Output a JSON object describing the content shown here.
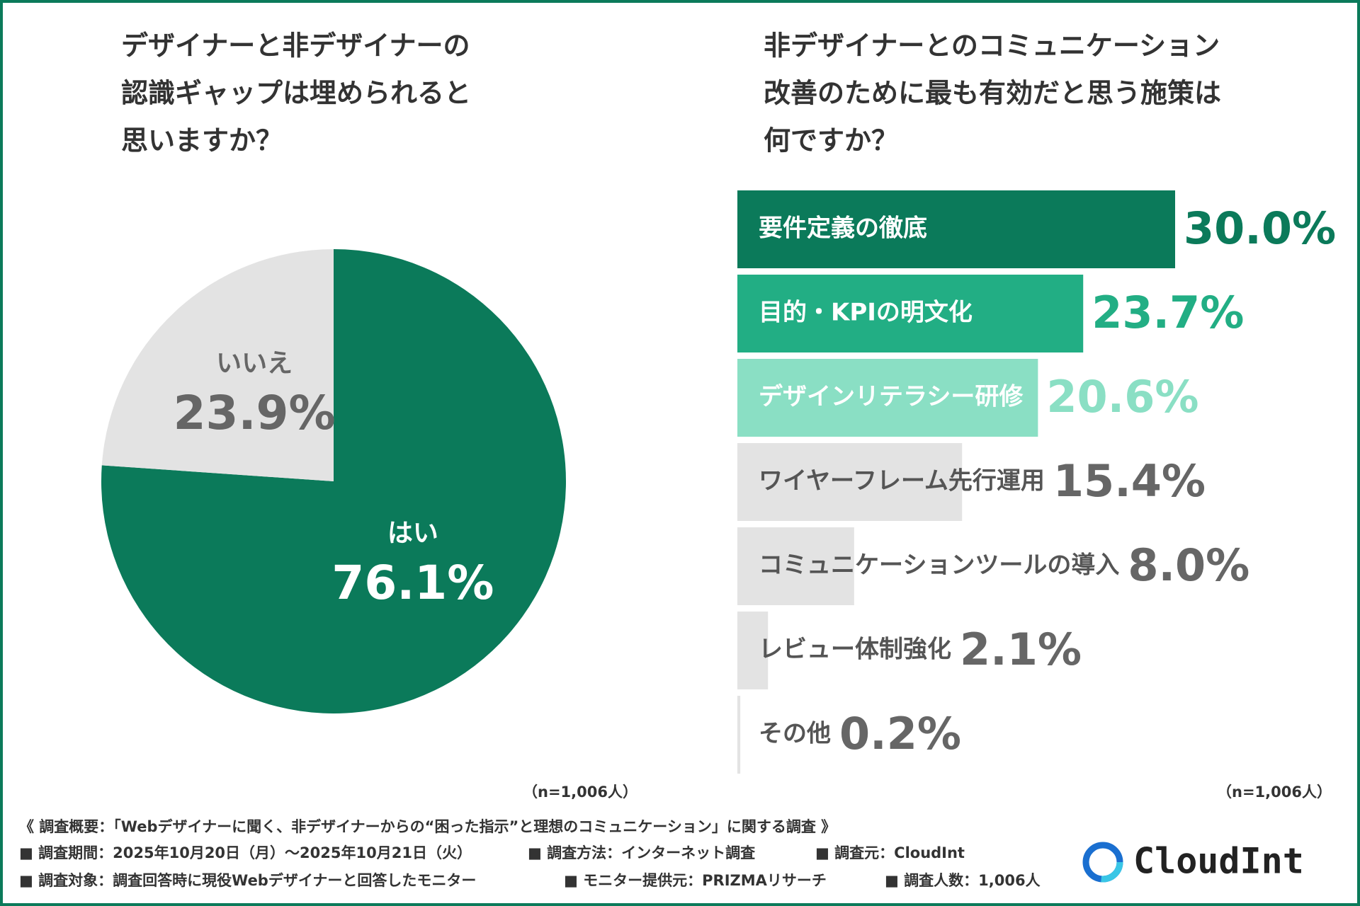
{
  "chart_data": [
    {
      "type": "pie",
      "title": [
        "デザイナーと非デザイナーの",
        "認識ギャップは埋められると",
        "思いますか？"
      ],
      "categories": [
        "はい",
        "いいえ"
      ],
      "values": [
        76.1,
        23.9
      ],
      "value_labels": [
        "76.1%",
        "23.9%"
      ],
      "colors": [
        "#0b7a5a",
        "#e3e3e3"
      ],
      "label_colors": [
        "#ffffff",
        "#666666"
      ],
      "note": "（n=1,006人）"
    },
    {
      "type": "bar",
      "title": [
        "非デザイナーとのコミュニケーション",
        "改善のために最も有効だと思う施策は",
        "何ですか？"
      ],
      "categories": [
        "要件定義の徹底",
        "目的・KPIの明文化",
        "デザインリテラシー研修",
        "ワイヤーフレーム先行運用",
        "コミュニケーションツールの導入",
        "レビュー体制強化",
        "その他"
      ],
      "values": [
        30.0,
        23.7,
        20.6,
        15.4,
        8.0,
        2.1,
        0.2
      ],
      "value_labels": [
        "30.0%",
        "23.7%",
        "20.6%",
        "15.4%",
        "8.0%",
        "2.1%",
        "0.2%"
      ],
      "colors": [
        "#0b7a5a",
        "#22ae84",
        "#8adfc4",
        "#e3e3e3",
        "#e3e3e3",
        "#e3e3e3",
        "#e3e3e3"
      ],
      "category_colors": [
        "#ffffff",
        "#ffffff",
        "#ffffff",
        "#555555",
        "#555555",
        "#555555",
        "#555555"
      ],
      "label_colors": [
        "#0b7a5a",
        "#22ae84",
        "#8adfc4",
        "#666666",
        "#666666",
        "#666666",
        "#666666"
      ],
      "note": "（n=1,006人）"
    }
  ],
  "footer": {
    "summary": "《 調査概要：「Webデザイナーに聞く、非デザイナーからの“困った指示”と理想のコミュニケーション」に関する調査 》",
    "line1": [
      "■ 調査期間：2025年10月20日（月）〜2025年10月21日（火）",
      "■ 調査方法：インターネット調査",
      "■ 調査元：CloudInt"
    ],
    "line2": [
      "■ 調査対象：調査回答時に現役Webデザイナーと回答したモニター",
      "■ モニター提供元：PRIZMAリサーチ",
      "■ 調査人数：1,006人"
    ]
  },
  "logo": "CloudInt"
}
